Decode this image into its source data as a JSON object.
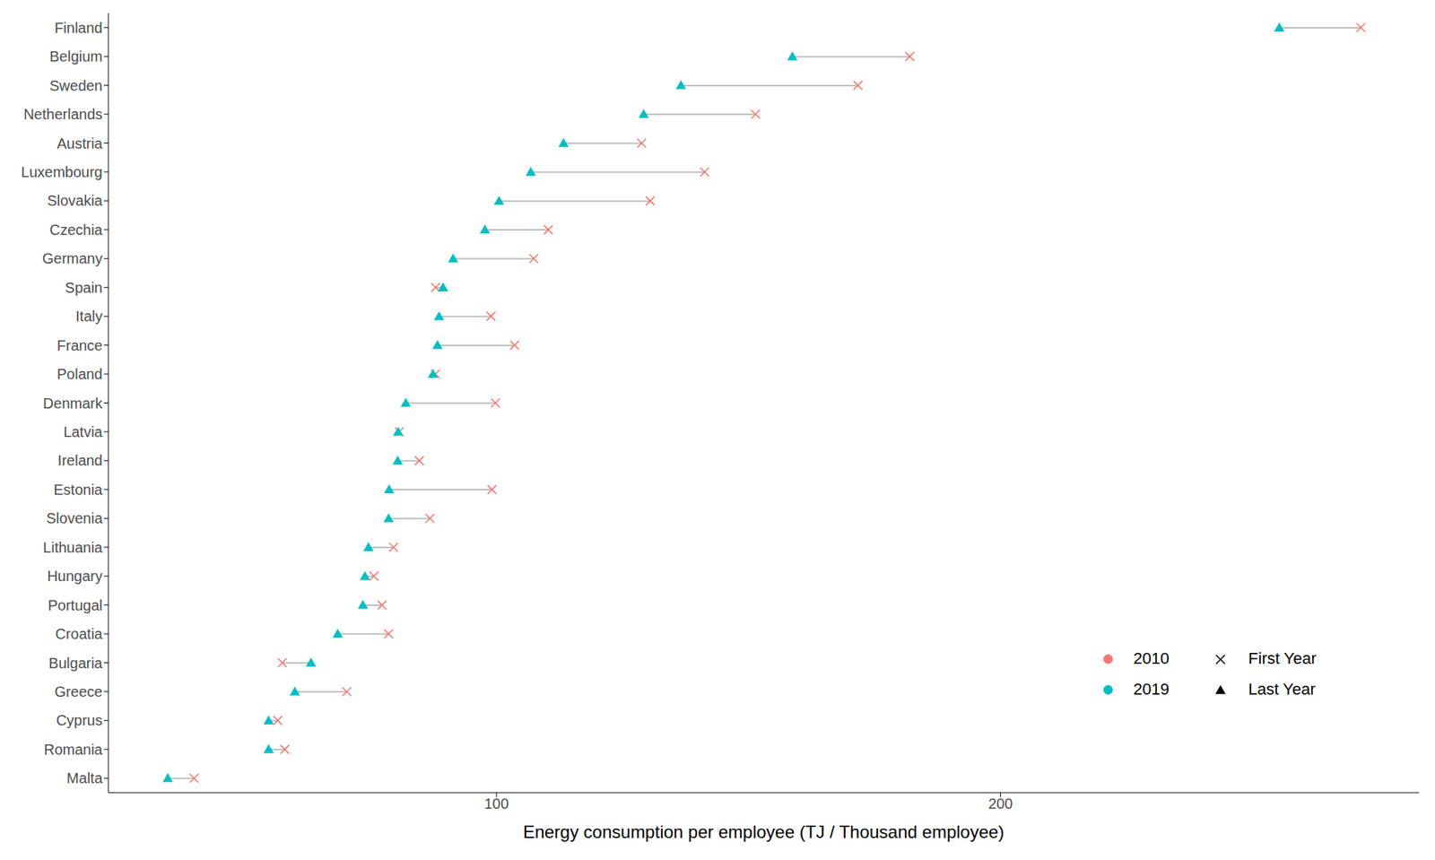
{
  "chart_data": {
    "type": "dumbbell",
    "orientation": "horizontal",
    "x_label": "Energy consumption per employee (TJ / Thousand employee)",
    "categories": [
      "Finland",
      "Belgium",
      "Sweden",
      "Netherlands",
      "Austria",
      "Luxembourg",
      "Slovakia",
      "Czechia",
      "Germany",
      "Spain",
      "Italy",
      "France",
      "Poland",
      "Denmark",
      "Latvia",
      "Ireland",
      "Estonia",
      "Slovenia",
      "Lithuania",
      "Hungary",
      "Portugal",
      "Croatia",
      "Bulgaria",
      "Greece",
      "Cyprus",
      "Romania",
      "Malta"
    ],
    "series": [
      {
        "name": "2010",
        "color": "#F8766D",
        "marker": "x",
        "marker_label": "First Year",
        "values": [
          271.5,
          182.0,
          171.7,
          151.4,
          128.8,
          141.3,
          130.5,
          110.3,
          107.4,
          87.9,
          98.9,
          103.6,
          87.9,
          99.8,
          80.7,
          84.7,
          99.1,
          86.8,
          79.6,
          75.7,
          77.3,
          78.6,
          57.5,
          70.3,
          56.6,
          58.0,
          40.0
        ]
      },
      {
        "name": "2019",
        "color": "#00BFC4",
        "marker": "triangle",
        "marker_label": "Last Year",
        "values": [
          255.3,
          158.7,
          136.6,
          129.2,
          113.3,
          106.8,
          100.5,
          97.7,
          91.4,
          89.4,
          88.6,
          88.3,
          87.4,
          82.0,
          80.5,
          80.4,
          78.7,
          78.6,
          74.6,
          73.9,
          73.5,
          68.5,
          63.2,
          60.0,
          54.8,
          54.8,
          34.8
        ]
      }
    ],
    "xlim": [
      23,
      283
    ],
    "xticks": [
      100,
      200
    ],
    "grid": false,
    "legend": "bottom right"
  }
}
